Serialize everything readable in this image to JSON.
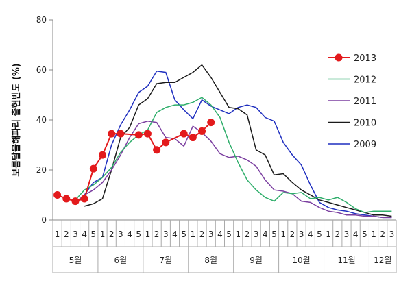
{
  "chart_data": {
    "type": "line",
    "ylabel": "보름달물해파리 출현빈도 (%)",
    "xlabel": "",
    "ylim": [
      0,
      80
    ],
    "yticks": [
      0,
      20,
      40,
      60,
      80
    ],
    "grid": false,
    "legend_position": "right",
    "x_week_labels": [
      "1",
      "2",
      "3",
      "4",
      "5",
      "1",
      "2",
      "3",
      "4",
      "5",
      "1",
      "2",
      "3",
      "4",
      "5",
      "1",
      "2",
      "3",
      "4",
      "5",
      "1",
      "2",
      "3",
      "4",
      "5",
      "1",
      "2",
      "3",
      "4",
      "5",
      "1",
      "2",
      "3",
      "4",
      "5",
      "1",
      "2",
      "3"
    ],
    "months": [
      {
        "label": "5월",
        "weeks": 5
      },
      {
        "label": "6월",
        "weeks": 5
      },
      {
        "label": "7월",
        "weeks": 5
      },
      {
        "label": "8월",
        "weeks": 5
      },
      {
        "label": "9월",
        "weeks": 5
      },
      {
        "label": "10월",
        "weeks": 5
      },
      {
        "label": "11월",
        "weeks": 5
      },
      {
        "label": "12월",
        "weeks": 3
      }
    ],
    "series": [
      {
        "name": "2013",
        "color": "#e31a1c",
        "marker": "circle",
        "start": 0,
        "values": [
          10,
          8.5,
          7.5,
          8.5,
          20.5,
          26,
          34.5,
          34.5,
          null,
          34,
          34.5,
          28,
          31,
          null,
          34.5,
          33,
          35.5,
          39
        ]
      },
      {
        "name": "2012",
        "color": "#2fae6b",
        "start": 2,
        "values": [
          8,
          12,
          14,
          17,
          21,
          27,
          31,
          34,
          36,
          43,
          45,
          46,
          46,
          47,
          49,
          46,
          41,
          31,
          23,
          16,
          12,
          9,
          7.5,
          11,
          10.5,
          11,
          8.5,
          9,
          8,
          9,
          7,
          4.5,
          3,
          3.5,
          3.5,
          3.5
        ]
      },
      {
        "name": "2011",
        "color": "#7b3fa0",
        "start": 2,
        "values": [
          7,
          10,
          12,
          15,
          20,
          26,
          33,
          38.5,
          39.5,
          39,
          33,
          32.5,
          29.5,
          37.5,
          35,
          31.5,
          26.5,
          25,
          25.5,
          24,
          21.5,
          16,
          12,
          11.5,
          10.5,
          7.5,
          7,
          5,
          3.5,
          3,
          2,
          2,
          1.5,
          1.5,
          1,
          1
        ]
      },
      {
        "name": "2010",
        "color": "#1a1a1a",
        "start": 3,
        "values": [
          5.5,
          6.5,
          8.5,
          20,
          33,
          37,
          46,
          48.5,
          54.5,
          55,
          55,
          57,
          59,
          62,
          57,
          51,
          45,
          44.5,
          42,
          28,
          26,
          18,
          18.5,
          15,
          12,
          10,
          8,
          7,
          6,
          5,
          4,
          3,
          2,
          2,
          1.5
        ]
      },
      {
        "name": "2009",
        "color": "#1f2fbf",
        "start": 3,
        "values": [
          10,
          15,
          17,
          30,
          38,
          44,
          51,
          53.5,
          59.5,
          59,
          48,
          44,
          40.5,
          48,
          45.5,
          44,
          42.5,
          45,
          46,
          45,
          41,
          39.5,
          31,
          26,
          22,
          14,
          7,
          5,
          4,
          3.5,
          2.5,
          2,
          1.5,
          1,
          1
        ]
      }
    ]
  }
}
